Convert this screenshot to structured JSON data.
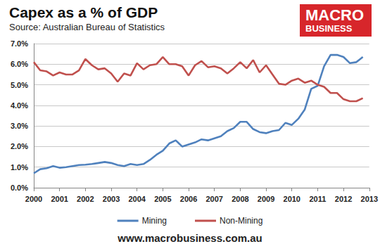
{
  "chart_data": {
    "type": "line",
    "title": "Capex as a % of GDP",
    "subtitle": "Source: Australian Bureau of Statistics",
    "annotations": [
      "MACRO",
      "BUSINESS",
      "www.macrobusiness.com.au"
    ],
    "x": [
      2000,
      2000.25,
      2000.5,
      2000.75,
      2001,
      2001.25,
      2001.5,
      2001.75,
      2002,
      2002.25,
      2002.5,
      2002.75,
      2003,
      2003.25,
      2003.5,
      2003.75,
      2004,
      2004.25,
      2004.5,
      2004.75,
      2005,
      2005.25,
      2005.5,
      2005.75,
      2006,
      2006.25,
      2006.5,
      2006.75,
      2007,
      2007.25,
      2007.5,
      2007.75,
      2008,
      2008.25,
      2008.5,
      2008.75,
      2009,
      2009.25,
      2009.5,
      2009.75,
      2010,
      2010.25,
      2010.5,
      2010.75,
      2011,
      2011.25,
      2011.5,
      2011.75,
      2012,
      2012.25,
      2012.5,
      2012.75
    ],
    "series": [
      {
        "name": "Mining",
        "color": "#4f81bd",
        "values": [
          0.7,
          0.9,
          0.95,
          1.05,
          0.97,
          1.0,
          1.05,
          1.1,
          1.12,
          1.15,
          1.2,
          1.25,
          1.2,
          1.1,
          1.05,
          1.15,
          1.1,
          1.15,
          1.35,
          1.6,
          1.8,
          2.15,
          2.3,
          2.0,
          2.1,
          2.2,
          2.35,
          2.3,
          2.4,
          2.5,
          2.75,
          2.9,
          3.2,
          3.2,
          2.85,
          2.7,
          2.65,
          2.75,
          2.8,
          3.15,
          3.05,
          3.35,
          3.8,
          4.8,
          4.95,
          5.9,
          6.45,
          6.45,
          6.35,
          6.05,
          6.1,
          6.35
        ]
      },
      {
        "name": "Non-Mining",
        "color": "#c0504d",
        "values": [
          6.1,
          5.7,
          5.65,
          5.45,
          5.6,
          5.5,
          5.5,
          5.7,
          6.25,
          5.95,
          5.75,
          5.8,
          5.55,
          5.15,
          5.55,
          5.45,
          6.05,
          5.75,
          5.95,
          6.0,
          6.35,
          6.0,
          6.0,
          5.9,
          5.45,
          5.95,
          6.15,
          5.85,
          5.9,
          5.8,
          5.55,
          5.8,
          6.1,
          5.8,
          6.2,
          5.6,
          5.95,
          5.5,
          5.05,
          5.0,
          5.2,
          5.3,
          5.1,
          5.2,
          5.0,
          4.9,
          4.6,
          4.6,
          4.3,
          4.2,
          4.2,
          4.35
        ]
      }
    ],
    "xlim": [
      2000,
      2013
    ],
    "xticks": [
      2000,
      2001,
      2002,
      2003,
      2004,
      2005,
      2006,
      2007,
      2008,
      2009,
      2010,
      2011,
      2012,
      2013
    ],
    "ylim": [
      0,
      7
    ],
    "yticks": [
      {
        "value": 0,
        "label": "0.0%"
      },
      {
        "value": 1,
        "label": "1.0%"
      },
      {
        "value": 2,
        "label": "2.0%"
      },
      {
        "value": 3,
        "label": "3.0%"
      },
      {
        "value": 4,
        "label": "4.0%"
      },
      {
        "value": 5,
        "label": "5.0%"
      },
      {
        "value": 6,
        "label": "6.0%"
      },
      {
        "value": 7,
        "label": "7.0%"
      }
    ],
    "grid": true,
    "legend": "bottom"
  }
}
